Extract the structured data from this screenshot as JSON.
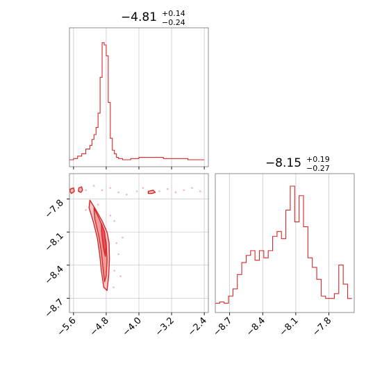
{
  "chart_data": [
    {
      "type": "histogram",
      "panel": "top-left",
      "title": "−4.81",
      "title_sup": "+0.14",
      "title_sub": "−0.24",
      "xlim": [
        -5.7,
        -2.3
      ],
      "xticks": [
        -5.6,
        -4.8,
        -4.0,
        -3.2,
        -2.4
      ],
      "grid": true,
      "color": "#d62728",
      "bins_x": [
        -5.7,
        -5.6,
        -5.5,
        -5.4,
        -5.3,
        -5.2,
        -5.15,
        -5.1,
        -5.05,
        -5.0,
        -4.95,
        -4.9,
        -4.85,
        -4.8,
        -4.75,
        -4.7,
        -4.65,
        -4.6,
        -4.55,
        -4.5,
        -4.4,
        -4.3,
        -4.2,
        -4.0,
        -3.8,
        -3.6,
        -3.4,
        -3.2,
        -3.0,
        -2.8,
        -2.6,
        -2.4
      ],
      "counts": [
        0.0,
        0.01,
        0.03,
        0.05,
        0.09,
        0.12,
        0.17,
        0.21,
        0.27,
        0.39,
        0.69,
        0.98,
        0.96,
        0.87,
        0.48,
        0.18,
        0.08,
        0.05,
        0.02,
        0.01,
        0.0,
        0.0,
        0.01,
        0.02,
        0.02,
        0.02,
        0.01,
        0.01,
        0.01,
        0.0,
        0.0
      ]
    },
    {
      "type": "histogram",
      "panel": "bottom-right",
      "title": "−8.15",
      "title_sup": "+0.19",
      "title_sub": "−0.27",
      "xlim": [
        -8.83,
        -7.57
      ],
      "xticks": [
        -8.7,
        -8.4,
        -8.1,
        -7.8
      ],
      "grid": true,
      "color": "#d62728",
      "bins_x": [
        -8.83,
        -8.79,
        -8.75,
        -8.71,
        -8.67,
        -8.63,
        -8.59,
        -8.55,
        -8.51,
        -8.47,
        -8.43,
        -8.39,
        -8.35,
        -8.31,
        -8.27,
        -8.23,
        -8.19,
        -8.15,
        -8.11,
        -8.07,
        -8.03,
        -7.99,
        -7.95,
        -7.91,
        -7.87,
        -7.83,
        -7.79,
        -7.75,
        -7.71,
        -7.67,
        -7.63,
        -7.59
      ],
      "counts": [
        0.02,
        0.03,
        0.02,
        0.08,
        0.14,
        0.26,
        0.36,
        0.42,
        0.46,
        0.38,
        0.46,
        0.4,
        0.46,
        0.58,
        0.62,
        0.56,
        0.8,
        1.0,
        0.7,
        0.92,
        0.66,
        0.4,
        0.32,
        0.22,
        0.08,
        0.06,
        0.06,
        0.1,
        0.34,
        0.18,
        0.06
      ]
    },
    {
      "type": "contour",
      "panel": "bottom-left",
      "xlim": [
        -5.7,
        -2.3
      ],
      "ylim": [
        -8.83,
        -7.57
      ],
      "xticks": [
        -5.6,
        -4.8,
        -4.0,
        -3.2,
        -2.4
      ],
      "yticks": [
        -7.8,
        -8.1,
        -8.4,
        -8.7
      ],
      "grid": true,
      "color": "#d62728",
      "contours": [
        {
          "level": "outer",
          "points": [
            [
              -5.2,
              -7.81
            ],
            [
              -5.05,
              -7.9
            ],
            [
              -4.9,
              -8.0
            ],
            [
              -4.78,
              -8.1
            ],
            [
              -4.73,
              -8.2
            ],
            [
              -4.72,
              -8.35
            ],
            [
              -4.74,
              -8.5
            ],
            [
              -4.78,
              -8.63
            ],
            [
              -4.86,
              -8.6
            ],
            [
              -4.92,
              -8.45
            ],
            [
              -4.96,
              -8.3
            ],
            [
              -5.02,
              -8.15
            ],
            [
              -5.12,
              -8.0
            ],
            [
              -5.22,
              -7.88
            ]
          ]
        },
        {
          "level": "middle",
          "points": [
            [
              -5.1,
              -7.88
            ],
            [
              -4.97,
              -7.98
            ],
            [
              -4.86,
              -8.08
            ],
            [
              -4.8,
              -8.2
            ],
            [
              -4.78,
              -8.35
            ],
            [
              -4.8,
              -8.5
            ],
            [
              -4.84,
              -8.55
            ],
            [
              -4.88,
              -8.42
            ],
            [
              -4.92,
              -8.28
            ],
            [
              -4.98,
              -8.14
            ],
            [
              -5.08,
              -7.98
            ]
          ]
        },
        {
          "level": "inner",
          "points": [
            [
              -4.92,
              -8.02
            ],
            [
              -4.84,
              -8.1
            ],
            [
              -4.8,
              -8.22
            ],
            [
              -4.82,
              -8.32
            ],
            [
              -4.87,
              -8.24
            ],
            [
              -4.91,
              -8.12
            ]
          ]
        },
        {
          "level": "island",
          "points": [
            [
              -5.47,
              -7.7
            ],
            [
              -5.4,
              -7.69
            ],
            [
              -5.38,
              -7.72
            ],
            [
              -5.42,
              -7.74
            ],
            [
              -5.48,
              -7.73
            ]
          ]
        },
        {
          "level": "island",
          "points": [
            [
              -5.68,
              -7.71
            ],
            [
              -5.6,
              -7.7
            ],
            [
              -5.58,
              -7.73
            ],
            [
              -5.65,
              -7.75
            ],
            [
              -5.69,
              -7.73
            ]
          ]
        },
        {
          "level": "island",
          "points": [
            [
              -3.77,
              -7.73
            ],
            [
              -3.65,
              -7.72
            ],
            [
              -3.6,
              -7.74
            ],
            [
              -3.68,
              -7.75
            ],
            [
              -3.77,
              -7.75
            ]
          ]
        }
      ],
      "scatter": [
        [
          -5.3,
          -7.72
        ],
        [
          -5.1,
          -7.68
        ],
        [
          -4.9,
          -7.72
        ],
        [
          -4.7,
          -7.7
        ],
        [
          -4.5,
          -7.74
        ],
        [
          -4.3,
          -7.76
        ],
        [
          -4.05,
          -7.73
        ],
        [
          -3.9,
          -7.7
        ],
        [
          -3.5,
          -7.73
        ],
        [
          -3.3,
          -7.71
        ],
        [
          -3.1,
          -7.74
        ],
        [
          -2.9,
          -7.72
        ],
        [
          -2.7,
          -7.7
        ],
        [
          -2.5,
          -7.73
        ],
        [
          -4.6,
          -8.0
        ],
        [
          -4.55,
          -8.2
        ],
        [
          -4.6,
          -8.45
        ],
        [
          -4.5,
          -8.3
        ],
        [
          -5.0,
          -7.85
        ],
        [
          -4.4,
          -8.15
        ],
        [
          -4.62,
          -8.6
        ],
        [
          -4.45,
          -8.5
        ],
        [
          -5.3,
          -7.9
        ],
        [
          -4.7,
          -7.95
        ]
      ]
    }
  ]
}
